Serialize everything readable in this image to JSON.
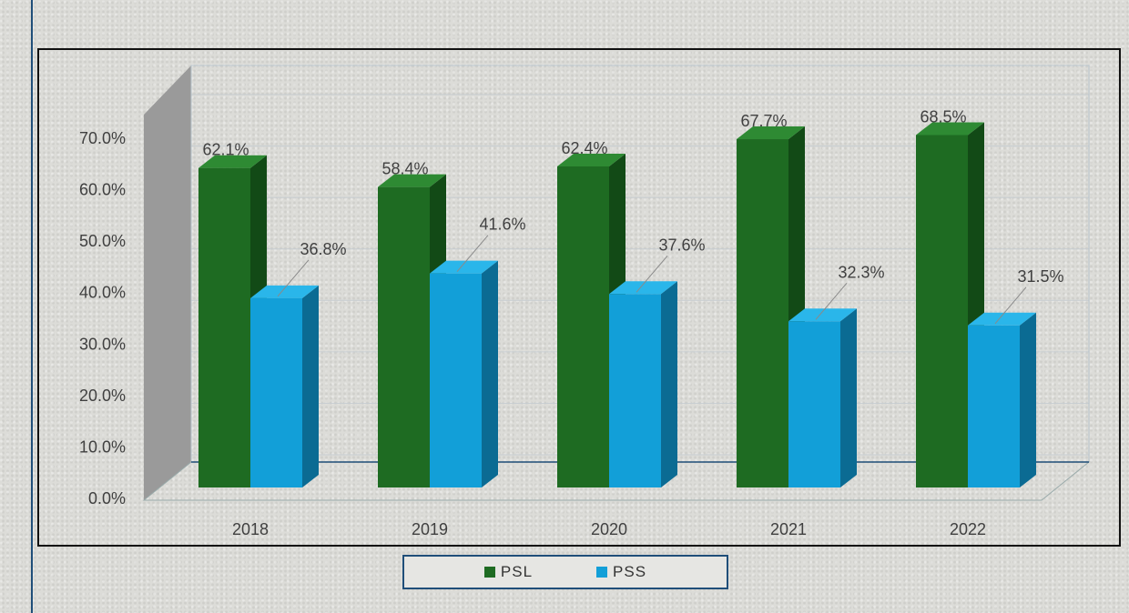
{
  "chart_data": {
    "type": "bar",
    "categories": [
      "2018",
      "2019",
      "2020",
      "2021",
      "2022"
    ],
    "series": [
      {
        "name": "PSL",
        "values": [
          62.1,
          58.4,
          62.4,
          67.7,
          68.5
        ],
        "labels": [
          "62.1%",
          "58.4%",
          "62.4%",
          "67.7%",
          "68.5%"
        ]
      },
      {
        "name": "PSS",
        "values": [
          36.8,
          41.6,
          37.6,
          32.3,
          31.5
        ],
        "labels": [
          "36.8%",
          "41.6%",
          "37.6%",
          "32.3%",
          "31.5%"
        ]
      }
    ],
    "yticks": [
      "0.0%",
      "10.0%",
      "20.0%",
      "30.0%",
      "40.0%",
      "50.0%",
      "60.0%",
      "70.0%"
    ],
    "ylim": [
      0,
      70
    ],
    "grid": true,
    "legend": "bottom",
    "colors": {
      "PSL": "#1e6b22",
      "PSS": "#129fd8"
    },
    "style": "3d-clustered-column"
  }
}
